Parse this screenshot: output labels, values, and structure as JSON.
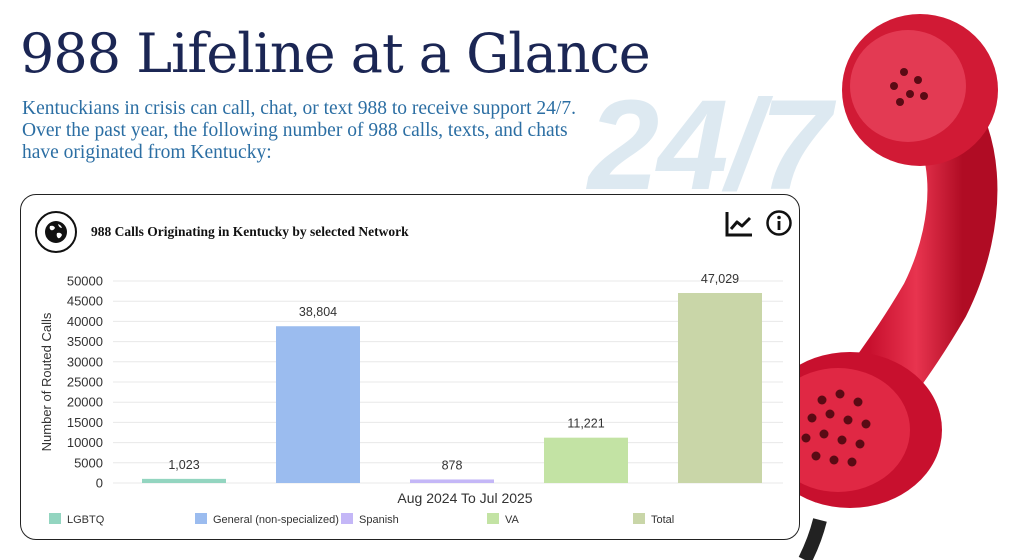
{
  "header": {
    "title": "988 Lifeline at a Glance",
    "intro": "Kentuckians in crisis can call, chat, or text 988 to receive support 24/7. Over the past year, the following number of  988 calls, texts, and chats have originated from Kentucky:",
    "watermark": "24/7"
  },
  "card": {
    "title": "988 Calls Originating in Kentucky by selected Network",
    "icons": {
      "network": "globe-icon",
      "trend": "line-chart-icon",
      "info": "info-icon"
    }
  },
  "chart_data": {
    "type": "bar",
    "title": "988 Calls Originating in Kentucky by selected Network",
    "xlabel": "Aug 2024 To Jul 2025",
    "ylabel": "Number of Routed Calls",
    "ylim": [
      0,
      50000
    ],
    "yticks": [
      0,
      5000,
      10000,
      15000,
      20000,
      25000,
      30000,
      35000,
      40000,
      45000,
      50000
    ],
    "categories": [
      "LGBTQ",
      "General (non-specialized)",
      "Spanish",
      "VA",
      "Total"
    ],
    "values": [
      1023,
      38804,
      878,
      11221,
      47029
    ],
    "value_labels": [
      "1,023",
      "38,804",
      "878",
      "11,221",
      "47,029"
    ],
    "colors": [
      "#93d5c0",
      "#9bbcef",
      "#c4b7f7",
      "#c3e3a4",
      "#c9d6a8"
    ],
    "legend": {
      "placement": "bottom",
      "items": [
        "LGBTQ",
        "General (non-specialized)",
        "Spanish",
        "VA",
        "Total"
      ]
    },
    "grid": true
  }
}
